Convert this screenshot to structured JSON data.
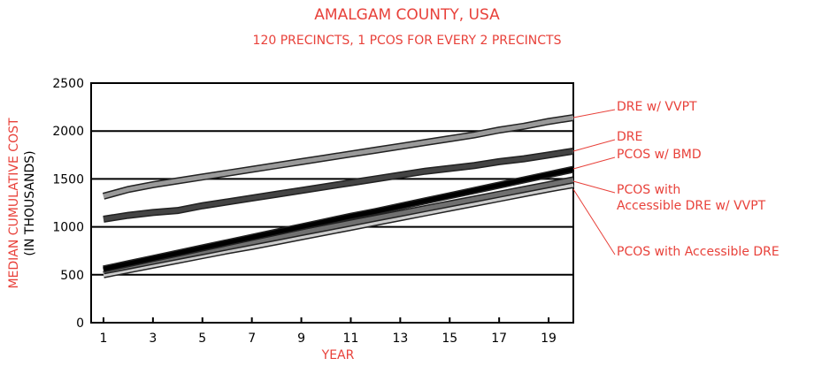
{
  "chart_data": {
    "type": "line",
    "title": "AMALGAM COUNTY, USA",
    "subtitle": "120 PRECINCTS, 1 PCOS FOR EVERY 2 PRECINCTS",
    "ylabel": "MEDIAN CUMULATIVE COST",
    "ylabel_note": "(IN THOUSANDS)",
    "xlabel": "YEAR",
    "x": [
      1,
      2,
      3,
      4,
      5,
      6,
      7,
      8,
      9,
      10,
      11,
      12,
      13,
      14,
      15,
      16,
      17,
      18,
      19,
      20
    ],
    "xlim": [
      0.5,
      20
    ],
    "xticks": [
      1,
      3,
      5,
      7,
      9,
      11,
      13,
      15,
      17,
      19
    ],
    "ylim": [
      0,
      2500
    ],
    "yticks": [
      0,
      500,
      1000,
      1500,
      2000,
      2500
    ],
    "grid": true,
    "series": [
      {
        "name": "DRE w/ VVPT",
        "color": "#9a9a9a",
        "values": [
          1320,
          1390,
          1440,
          1480,
          1520,
          1560,
          1600,
          1640,
          1680,
          1720,
          1760,
          1800,
          1840,
          1880,
          1920,
          1960,
          2010,
          2050,
          2100,
          2140
        ]
      },
      {
        "name": "DRE",
        "color": "#444444",
        "values": [
          1080,
          1120,
          1150,
          1170,
          1220,
          1260,
          1300,
          1340,
          1380,
          1420,
          1460,
          1500,
          1540,
          1580,
          1610,
          1640,
          1680,
          1710,
          1750,
          1790
        ]
      },
      {
        "name": "PCOS w/ BMD",
        "color": "#000000",
        "values": [
          560,
          615,
          670,
          725,
          780,
          835,
          890,
          945,
          1000,
          1055,
          1110,
          1160,
          1215,
          1270,
          1325,
          1380,
          1435,
          1490,
          1545,
          1600
        ]
      },
      {
        "name": "PCOS with\nAccessible DRE w/ VVPT",
        "color": "#707070",
        "values": [
          540,
          590,
          640,
          690,
          740,
          790,
          840,
          890,
          940,
          990,
          1040,
          1090,
          1140,
          1190,
          1240,
          1290,
          1340,
          1390,
          1440,
          1490
        ]
      },
      {
        "name": "PCOS with Accessible DRE",
        "color": "#cccccc",
        "values": [
          500,
          550,
          600,
          650,
          700,
          750,
          795,
          845,
          895,
          945,
          995,
          1045,
          1095,
          1145,
          1195,
          1245,
          1295,
          1345,
          1395,
          1440
        ]
      }
    ]
  }
}
